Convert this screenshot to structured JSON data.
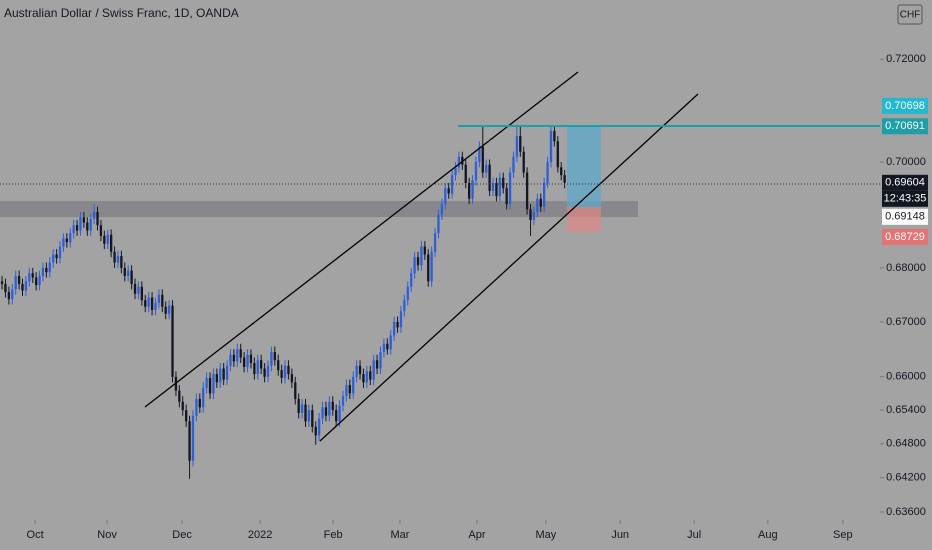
{
  "chart_data": {
    "type": "candlestick",
    "title": "Australian Dollar / Swiss Franc, 1D, OANDA",
    "currency": "CHF",
    "countdown": "12:43:35",
    "up_color": "#2f5fd8",
    "down_color": "#131722",
    "log_scale": true,
    "xlim": [
      -0.6,
      257.5
    ],
    "ylim": [
      0.6346,
      0.7318
    ],
    "xticks": [
      {
        "value": 9.7,
        "label": "Oct"
      },
      {
        "value": 30.8,
        "label": "Nov"
      },
      {
        "value": 52.8,
        "label": "Dec"
      },
      {
        "value": 75.7,
        "label": "2022"
      },
      {
        "value": 97.1,
        "label": "Feb"
      },
      {
        "value": 116.7,
        "label": "Mar"
      },
      {
        "value": 139.3,
        "label": "Apr"
      },
      {
        "value": 159.5,
        "label": "May"
      },
      {
        "value": 181.3,
        "label": "Jun"
      },
      {
        "value": 203,
        "label": "Jul"
      },
      {
        "value": 224.6,
        "label": "Aug"
      },
      {
        "value": 246.6,
        "label": "Sep"
      }
    ],
    "yticks": [
      {
        "value": 0.636,
        "label": "0.63600"
      },
      {
        "value": 0.642,
        "label": "0.64200"
      },
      {
        "value": 0.648,
        "label": "0.64800"
      },
      {
        "value": 0.654,
        "label": "0.65400"
      },
      {
        "value": 0.66,
        "label": "0.66000"
      },
      {
        "value": 0.67,
        "label": "0.67000"
      },
      {
        "value": 0.68,
        "label": "0.68000"
      },
      {
        "value": 0.7,
        "label": "0.70000"
      },
      {
        "value": 0.72,
        "label": "0.72000"
      }
    ],
    "price_tags": [
      {
        "value": 0.70698,
        "label": "0.70698",
        "color": "#22b8d0"
      },
      {
        "value": 0.70691,
        "label": "0.70691",
        "color": "#1e9ea6"
      },
      {
        "value": 0.69604,
        "label": "0.69604",
        "color": "#131722"
      },
      {
        "value": 0.69148,
        "label": "0.69148",
        "color": "#ffffff"
      },
      {
        "value": 0.68729,
        "label": "0.68729",
        "color": "#e57373"
      }
    ],
    "open": [
      0.6775,
      0.677,
      0.6755,
      0.6742,
      0.676,
      0.6785,
      0.677,
      0.6758,
      0.6775,
      0.679,
      0.6782,
      0.6768,
      0.6785,
      0.68,
      0.6792,
      0.681,
      0.6825,
      0.6818,
      0.684,
      0.6855,
      0.6848,
      0.6865,
      0.688,
      0.687,
      0.6895,
      0.6885,
      0.687,
      0.6892,
      0.6905,
      0.688,
      0.686,
      0.6845,
      0.6862,
      0.683,
      0.681,
      0.6822,
      0.68,
      0.6785,
      0.6795,
      0.677,
      0.6752,
      0.6765,
      0.674,
      0.6728,
      0.6745,
      0.6722,
      0.6735,
      0.675,
      0.6728,
      0.6715,
      0.673,
      0.66,
      0.6575,
      0.6555,
      0.654,
      0.652,
      0.645,
      0.653,
      0.656,
      0.6545,
      0.658,
      0.6598,
      0.657,
      0.6605,
      0.659,
      0.6615,
      0.6595,
      0.662,
      0.664,
      0.6628,
      0.665,
      0.6635,
      0.6618,
      0.664,
      0.6625,
      0.6605,
      0.663,
      0.6615,
      0.66,
      0.662,
      0.6645,
      0.663,
      0.6612,
      0.6598,
      0.662,
      0.6605,
      0.659,
      0.656,
      0.6535,
      0.655,
      0.652,
      0.654,
      0.651,
      0.6495,
      0.6525,
      0.6545,
      0.653,
      0.6555,
      0.654,
      0.652,
      0.6548,
      0.6565,
      0.6585,
      0.657,
      0.66,
      0.662,
      0.6605,
      0.659,
      0.661,
      0.6595,
      0.663,
      0.6615,
      0.6645,
      0.666,
      0.665,
      0.6675,
      0.67,
      0.669,
      0.672,
      0.674,
      0.6765,
      0.679,
      0.682,
      0.6805,
      0.684,
      0.6825,
      0.6775,
      0.683,
      0.6865,
      0.69,
      0.692,
      0.695,
      0.694,
      0.6975,
      0.699,
      0.701,
      0.6995,
      0.696,
      0.693,
      0.6965,
      0.7,
      0.703,
      0.698,
      0.6995,
      0.6945,
      0.696,
      0.6935,
      0.697,
      0.695,
      0.692,
      0.698,
      0.701,
      0.705,
      0.702,
      0.698,
      0.691,
      0.689,
      0.6905,
      0.693,
      0.6915,
      0.696,
      0.7,
      0.706,
      0.704,
      0.699,
      0.6975
    ],
    "high": [
      0.6785,
      0.678,
      0.6765,
      0.677,
      0.6795,
      0.6795,
      0.678,
      0.6785,
      0.68,
      0.68,
      0.6792,
      0.6795,
      0.681,
      0.681,
      0.682,
      0.6835,
      0.6835,
      0.685,
      0.6865,
      0.6865,
      0.6875,
      0.689,
      0.689,
      0.6905,
      0.6905,
      0.6895,
      0.6902,
      0.692,
      0.6915,
      0.689,
      0.687,
      0.6872,
      0.6872,
      0.684,
      0.6832,
      0.6832,
      0.681,
      0.6805,
      0.6805,
      0.678,
      0.6775,
      0.6775,
      0.675,
      0.6755,
      0.6755,
      0.6745,
      0.676,
      0.676,
      0.6738,
      0.674,
      0.674,
      0.661,
      0.6585,
      0.6565,
      0.655,
      0.653,
      0.654,
      0.657,
      0.657,
      0.659,
      0.6608,
      0.6608,
      0.6615,
      0.6615,
      0.6625,
      0.6625,
      0.663,
      0.665,
      0.665,
      0.666,
      0.666,
      0.6645,
      0.665,
      0.665,
      0.6635,
      0.664,
      0.664,
      0.6625,
      0.663,
      0.6655,
      0.6655,
      0.664,
      0.6622,
      0.663,
      0.663,
      0.6615,
      0.66,
      0.657,
      0.656,
      0.656,
      0.655,
      0.655,
      0.652,
      0.6535,
      0.6555,
      0.6555,
      0.6565,
      0.6565,
      0.655,
      0.6558,
      0.6575,
      0.6595,
      0.6595,
      0.661,
      0.663,
      0.663,
      0.6615,
      0.662,
      0.662,
      0.664,
      0.664,
      0.6655,
      0.667,
      0.667,
      0.6685,
      0.671,
      0.671,
      0.673,
      0.675,
      0.6775,
      0.68,
      0.683,
      0.683,
      0.685,
      0.685,
      0.6835,
      0.684,
      0.6875,
      0.691,
      0.693,
      0.696,
      0.696,
      0.6985,
      0.7,
      0.702,
      0.702,
      0.7005,
      0.697,
      0.6975,
      0.701,
      0.704,
      0.707,
      0.7005,
      0.7005,
      0.697,
      0.697,
      0.698,
      0.698,
      0.696,
      0.699,
      0.702,
      0.7068,
      0.7068,
      0.703,
      0.699,
      0.692,
      0.6915,
      0.694,
      0.694,
      0.697,
      0.701,
      0.707,
      0.7068,
      0.705,
      0.7,
      0.6985
    ],
    "low": [
      0.676,
      0.6745,
      0.6732,
      0.6732,
      0.675,
      0.676,
      0.6748,
      0.6748,
      0.6765,
      0.6772,
      0.6758,
      0.6758,
      0.6775,
      0.6782,
      0.6782,
      0.68,
      0.6808,
      0.6808,
      0.683,
      0.6838,
      0.6838,
      0.6855,
      0.686,
      0.686,
      0.6875,
      0.686,
      0.686,
      0.6882,
      0.687,
      0.685,
      0.6835,
      0.6835,
      0.682,
      0.68,
      0.68,
      0.679,
      0.6775,
      0.6775,
      0.676,
      0.6742,
      0.6742,
      0.673,
      0.6718,
      0.6718,
      0.6712,
      0.6712,
      0.6725,
      0.6718,
      0.6705,
      0.6705,
      0.659,
      0.6565,
      0.6545,
      0.653,
      0.651,
      0.6418,
      0.644,
      0.652,
      0.6535,
      0.6535,
      0.657,
      0.656,
      0.656,
      0.658,
      0.658,
      0.6585,
      0.6585,
      0.661,
      0.6618,
      0.6618,
      0.6625,
      0.6608,
      0.6608,
      0.6615,
      0.6595,
      0.6595,
      0.6605,
      0.659,
      0.659,
      0.661,
      0.662,
      0.6602,
      0.6588,
      0.6588,
      0.6595,
      0.658,
      0.655,
      0.6525,
      0.6525,
      0.651,
      0.651,
      0.65,
      0.6478,
      0.6485,
      0.6515,
      0.652,
      0.652,
      0.653,
      0.651,
      0.651,
      0.6538,
      0.6555,
      0.656,
      0.656,
      0.659,
      0.6595,
      0.658,
      0.658,
      0.6585,
      0.6585,
      0.6605,
      0.6605,
      0.6635,
      0.664,
      0.664,
      0.6665,
      0.668,
      0.668,
      0.671,
      0.673,
      0.6755,
      0.678,
      0.6795,
      0.6795,
      0.6815,
      0.6765,
      0.6765,
      0.682,
      0.6855,
      0.689,
      0.691,
      0.693,
      0.693,
      0.6965,
      0.698,
      0.6985,
      0.695,
      0.692,
      0.692,
      0.6955,
      0.699,
      0.697,
      0.697,
      0.6935,
      0.6935,
      0.6925,
      0.6925,
      0.694,
      0.691,
      0.691,
      0.697,
      0.7,
      0.701,
      0.697,
      0.69,
      0.686,
      0.688,
      0.6895,
      0.6905,
      0.6905,
      0.695,
      0.699,
      0.703,
      0.698,
      0.6965,
      0.695
    ],
    "close": [
      0.677,
      0.6755,
      0.6742,
      0.676,
      0.6785,
      0.677,
      0.6758,
      0.6775,
      0.679,
      0.6782,
      0.6768,
      0.6785,
      0.68,
      0.6792,
      0.681,
      0.6825,
      0.6818,
      0.684,
      0.6855,
      0.6848,
      0.6865,
      0.688,
      0.687,
      0.6895,
      0.6885,
      0.687,
      0.6892,
      0.6905,
      0.688,
      0.686,
      0.6845,
      0.6862,
      0.683,
      0.681,
      0.6822,
      0.68,
      0.6785,
      0.6795,
      0.677,
      0.6752,
      0.6765,
      0.674,
      0.6728,
      0.6745,
      0.6722,
      0.6735,
      0.675,
      0.6728,
      0.6715,
      0.673,
      0.66,
      0.6575,
      0.6555,
      0.654,
      0.652,
      0.645,
      0.653,
      0.656,
      0.6545,
      0.658,
      0.6598,
      0.657,
      0.6605,
      0.659,
      0.6615,
      0.6595,
      0.662,
      0.664,
      0.6628,
      0.665,
      0.6635,
      0.6618,
      0.664,
      0.6625,
      0.6605,
      0.663,
      0.6615,
      0.66,
      0.662,
      0.6645,
      0.663,
      0.6612,
      0.6598,
      0.662,
      0.6605,
      0.659,
      0.656,
      0.6535,
      0.655,
      0.652,
      0.654,
      0.651,
      0.6495,
      0.6525,
      0.6545,
      0.653,
      0.6555,
      0.654,
      0.652,
      0.6548,
      0.6565,
      0.6585,
      0.657,
      0.66,
      0.662,
      0.6605,
      0.659,
      0.661,
      0.6595,
      0.663,
      0.6615,
      0.6645,
      0.666,
      0.665,
      0.6675,
      0.67,
      0.669,
      0.672,
      0.674,
      0.6765,
      0.679,
      0.682,
      0.6805,
      0.684,
      0.6825,
      0.6775,
      0.683,
      0.6865,
      0.69,
      0.692,
      0.695,
      0.694,
      0.6975,
      0.699,
      0.701,
      0.6995,
      0.696,
      0.693,
      0.6965,
      0.7,
      0.703,
      0.698,
      0.6995,
      0.6945,
      0.696,
      0.6935,
      0.697,
      0.695,
      0.692,
      0.698,
      0.701,
      0.705,
      0.702,
      0.698,
      0.691,
      0.689,
      0.6905,
      0.693,
      0.6915,
      0.696,
      0.7,
      0.706,
      0.704,
      0.699,
      0.6975,
      0.69604
    ]
  }
}
